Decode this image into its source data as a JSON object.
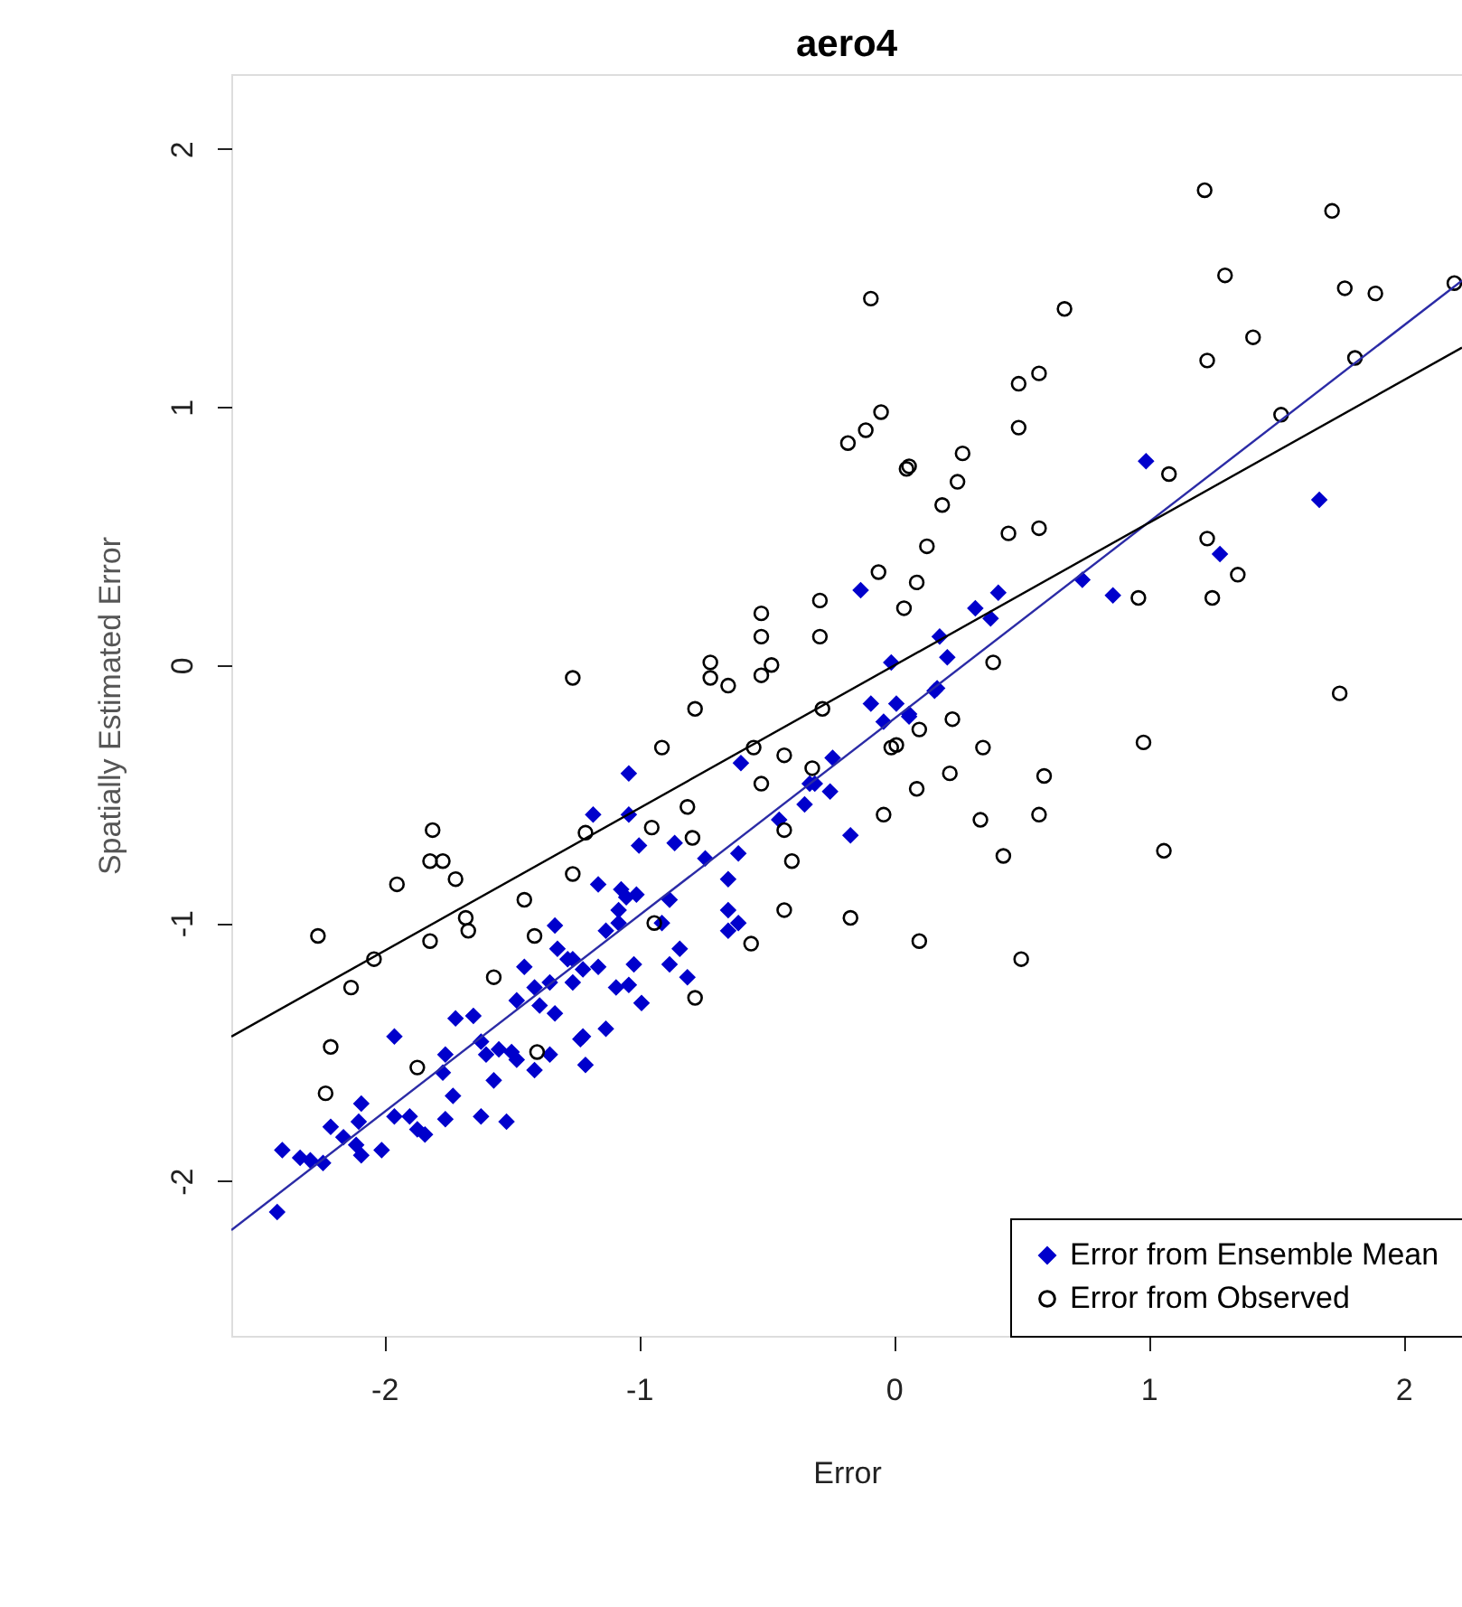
{
  "chart_data": {
    "type": "scatter",
    "title": "aero4",
    "xlabel": "Error",
    "ylabel": "Spatially Estimated Error",
    "xlim": [
      -2.6,
      2.23
    ],
    "ylim": [
      -2.6,
      2.29
    ],
    "xticks": [
      -2,
      -1,
      0,
      1,
      2
    ],
    "yticks": [
      -2,
      -1,
      0,
      1,
      2
    ],
    "legend": "bottom right",
    "series": [
      {
        "name": "Error from Ensemble Mean",
        "color": "#0000cc",
        "marker": "diamond",
        "x": [
          0.99,
          1.67,
          1.28,
          0.74,
          0.86,
          -0.13,
          0.41,
          0.32,
          0.38,
          -0.01,
          0.18,
          0.21,
          0.16,
          -0.09,
          0.01,
          0.06,
          -0.04,
          0.06,
          0.17,
          -0.24,
          -0.31,
          -0.25,
          -0.35,
          -0.17,
          -0.33,
          -0.45,
          -0.6,
          -1.04,
          -1.18,
          -1.04,
          -1.0,
          -0.86,
          -0.74,
          -0.61,
          -0.65,
          -1.16,
          -1.07,
          -1.01,
          -1.08,
          -0.88,
          -0.91,
          -1.13,
          -0.65,
          -0.61,
          -0.65,
          -0.84,
          -1.33,
          -1.26,
          -1.22,
          -1.16,
          -1.02,
          -0.88,
          -1.04,
          -0.81,
          -1.09,
          -0.99,
          -1.33,
          -1.22,
          -1.13,
          -1.35,
          -1.05,
          -1.08,
          -1.32,
          -1.45,
          -1.28,
          -1.26,
          -1.48,
          -1.39,
          -1.41,
          -1.23,
          -1.21,
          -1.72,
          -1.65,
          -1.96,
          -1.62,
          -1.55,
          -1.5,
          -1.6,
          -1.48,
          -1.76,
          -1.77,
          -1.41,
          -1.35,
          -1.57,
          -1.73,
          -1.52,
          -1.62,
          -1.76,
          -1.96,
          -1.9,
          -1.87,
          -1.84,
          -2.09,
          -2.1,
          -2.21,
          -2.16,
          -2.11,
          -2.09,
          -2.01,
          -2.29,
          -2.24,
          -2.4,
          -2.42,
          -2.33
        ],
        "values": [
          0.79,
          0.64,
          0.43,
          0.33,
          0.27,
          0.29,
          0.28,
          0.22,
          0.18,
          0.01,
          0.11,
          0.03,
          -0.1,
          -0.15,
          -0.15,
          -0.19,
          -0.22,
          -0.2,
          -0.09,
          -0.36,
          -0.46,
          -0.49,
          -0.54,
          -0.66,
          -0.46,
          -0.6,
          -0.38,
          -0.42,
          -0.58,
          -0.58,
          -0.7,
          -0.69,
          -0.75,
          -0.73,
          -0.83,
          -0.85,
          -0.87,
          -0.89,
          -0.95,
          -0.91,
          -1.0,
          -1.03,
          -0.95,
          -1.0,
          -1.03,
          -1.1,
          -1.01,
          -1.14,
          -1.18,
          -1.17,
          -1.16,
          -1.16,
          -1.24,
          -1.21,
          -1.25,
          -1.31,
          -1.35,
          -1.44,
          -1.41,
          -1.23,
          -0.9,
          -1.0,
          -1.1,
          -1.17,
          -1.14,
          -1.23,
          -1.3,
          -1.32,
          -1.25,
          -1.45,
          -1.55,
          -1.37,
          -1.36,
          -1.44,
          -1.46,
          -1.49,
          -1.5,
          -1.51,
          -1.53,
          -1.51,
          -1.58,
          -1.57,
          -1.51,
          -1.61,
          -1.67,
          -1.77,
          -1.75,
          -1.76,
          -1.75,
          -1.75,
          -1.8,
          -1.82,
          -1.7,
          -1.77,
          -1.79,
          -1.83,
          -1.86,
          -1.9,
          -1.88,
          -1.92,
          -1.93,
          -1.88,
          -2.12,
          -1.91
        ]
      },
      {
        "name": "Error from Observed",
        "color": "#000000",
        "marker": "circle",
        "x": [
          -1.81,
          -1.82,
          -1.77,
          -1.72,
          -1.95,
          -2.26,
          -2.04,
          -2.13,
          -1.82,
          -1.68,
          -1.67,
          -1.45,
          -1.26,
          -1.21,
          -0.95,
          -0.91,
          -1.26,
          -1.57,
          -1.41,
          -2.21,
          -1.87,
          -2.23,
          -1.4,
          -0.94,
          -0.78,
          -0.72,
          -0.72,
          -0.65,
          -0.52,
          -0.52,
          -0.52,
          -0.48,
          -0.29,
          -0.29,
          -0.28,
          -0.06,
          0.09,
          0.04,
          0.13,
          -0.55,
          -0.43,
          -0.52,
          -0.32,
          -0.81,
          -0.79,
          -0.43,
          -0.4,
          -0.01,
          0.01,
          0.1,
          0.09,
          -0.04,
          -0.43,
          -0.17,
          0.1,
          -0.56,
          -0.78,
          1.22,
          1.72,
          -0.09,
          0.67,
          1.3,
          1.77,
          1.89,
          2.2,
          1.23,
          1.41,
          1.81,
          0.49,
          0.57,
          0.49,
          1.52,
          -0.05,
          -0.11,
          -0.18,
          0.06,
          0.05,
          0.27,
          0.25,
          0.19,
          0.45,
          0.57,
          1.08,
          1.23,
          1.35,
          1.25,
          0.96,
          0.39,
          1.75,
          0.23,
          0.35,
          0.22,
          0.59,
          0.98,
          0.34,
          0.57,
          0.43,
          1.06,
          0.5
        ],
        "values": [
          -0.64,
          -0.76,
          -0.76,
          -0.83,
          -0.85,
          -1.05,
          -1.14,
          -1.25,
          -1.07,
          -0.98,
          -1.03,
          -0.91,
          -0.81,
          -0.65,
          -0.63,
          -0.32,
          -0.05,
          -1.21,
          -1.05,
          -1.48,
          -1.56,
          -1.66,
          -1.5,
          -1.0,
          -0.17,
          0.01,
          -0.05,
          -0.08,
          0.2,
          0.11,
          -0.04,
          0.0,
          0.25,
          0.11,
          -0.17,
          0.36,
          0.32,
          0.22,
          0.46,
          -0.32,
          -0.35,
          -0.46,
          -0.4,
          -0.55,
          -0.67,
          -0.64,
          -0.76,
          -0.32,
          -0.31,
          -0.25,
          -0.48,
          -0.58,
          -0.95,
          -0.98,
          -1.07,
          -1.08,
          -1.29,
          1.84,
          1.76,
          1.42,
          1.38,
          1.51,
          1.46,
          1.44,
          1.48,
          1.18,
          1.27,
          1.19,
          1.09,
          1.13,
          0.92,
          0.97,
          0.98,
          0.91,
          0.86,
          0.77,
          0.76,
          0.82,
          0.71,
          0.62,
          0.51,
          0.53,
          0.74,
          0.49,
          0.35,
          0.26,
          0.26,
          0.01,
          -0.11,
          -0.21,
          -0.32,
          -0.42,
          -0.43,
          -0.3,
          -0.6,
          -0.58,
          -0.74,
          -0.72,
          -1.14
        ]
      },
      {
        "type": "line",
        "color": "#2b2ba6",
        "x": [
          -2.6,
          2.23
        ],
        "values": [
          -2.19,
          1.49
        ]
      },
      {
        "type": "line",
        "color": "#000000",
        "x": [
          -2.6,
          2.23
        ],
        "values": [
          -1.44,
          1.23
        ]
      }
    ]
  }
}
